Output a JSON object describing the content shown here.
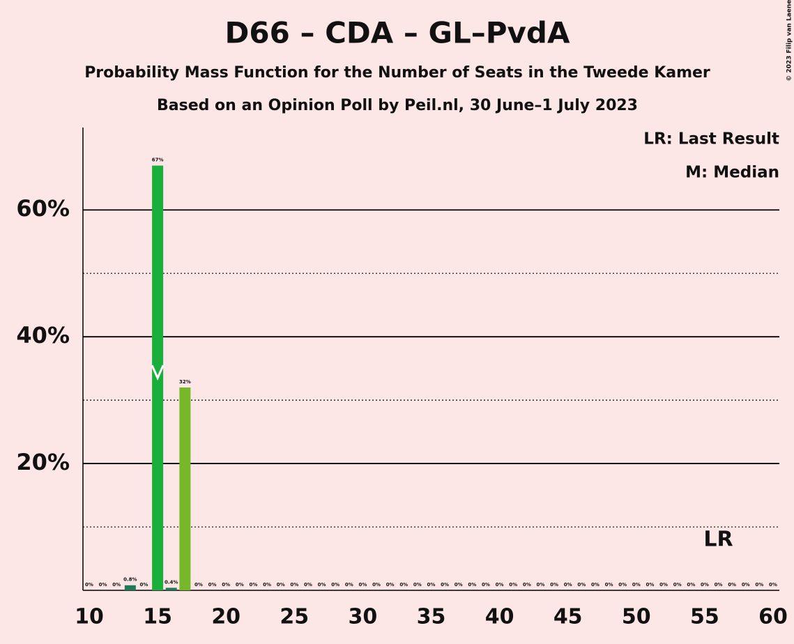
{
  "chart_data": {
    "type": "bar",
    "title": "D66 – CDA – GL–PvdA",
    "subtitle": "Probability Mass Function for the Number of Seats in the Tweede Kamer",
    "subtitle2": "Based on an Opinion Poll by Peil.nl, 30 June–1 July 2023",
    "copyright": "© 2023 Filip van Laenen",
    "legend_lr": "LR: Last Result",
    "legend_median": "M: Median",
    "last_result_label": "LR",
    "last_result": 56,
    "median": 15,
    "x": [
      10,
      11,
      12,
      13,
      14,
      15,
      16,
      17,
      18,
      19,
      20,
      21,
      22,
      23,
      24,
      25,
      26,
      27,
      28,
      29,
      30,
      31,
      32,
      33,
      34,
      35,
      36,
      37,
      38,
      39,
      40,
      41,
      42,
      43,
      44,
      45,
      46,
      47,
      48,
      49,
      50,
      51,
      52,
      53,
      54,
      55,
      56,
      57,
      58,
      59,
      60
    ],
    "values": [
      0,
      0,
      0,
      0.8,
      0,
      67,
      0.4,
      32,
      0,
      0,
      0,
      0,
      0,
      0,
      0,
      0,
      0,
      0,
      0,
      0,
      0,
      0,
      0,
      0,
      0,
      0,
      0,
      0,
      0,
      0,
      0,
      0,
      0,
      0,
      0,
      0,
      0,
      0,
      0,
      0,
      0,
      0,
      0,
      0,
      0,
      0,
      0,
      0,
      0,
      0,
      0
    ],
    "value_labels": [
      "0%",
      "0%",
      "0%",
      "0.8%",
      "0%",
      "67%",
      "0.4%",
      "32%",
      "0%",
      "0%",
      "0%",
      "0%",
      "0%",
      "0%",
      "0%",
      "0%",
      "0%",
      "0%",
      "0%",
      "0%",
      "0%",
      "0%",
      "0%",
      "0%",
      "0%",
      "0%",
      "0%",
      "0%",
      "0%",
      "0%",
      "0%",
      "0%",
      "0%",
      "0%",
      "0%",
      "0%",
      "0%",
      "0%",
      "0%",
      "0%",
      "0%",
      "0%",
      "0%",
      "0%",
      "0%",
      "0%",
      "0%",
      "0%",
      "0%",
      "0%",
      "0%"
    ],
    "color": "#1f7a5a",
    "highlight_colors": {
      "15": "#1aaf3c",
      "17": "#76b82a"
    },
    "xlim": [
      10,
      60
    ],
    "xticks": [
      10,
      15,
      20,
      25,
      30,
      35,
      40,
      45,
      50,
      55,
      60
    ],
    "ylim": [
      0,
      73
    ],
    "yticks": [
      {
        "value": 20,
        "label": "20%"
      },
      {
        "value": 40,
        "label": "40%"
      },
      {
        "value": 60,
        "label": "60%"
      }
    ],
    "minor_yticks": [
      10,
      30,
      50
    ],
    "grid": true
  }
}
